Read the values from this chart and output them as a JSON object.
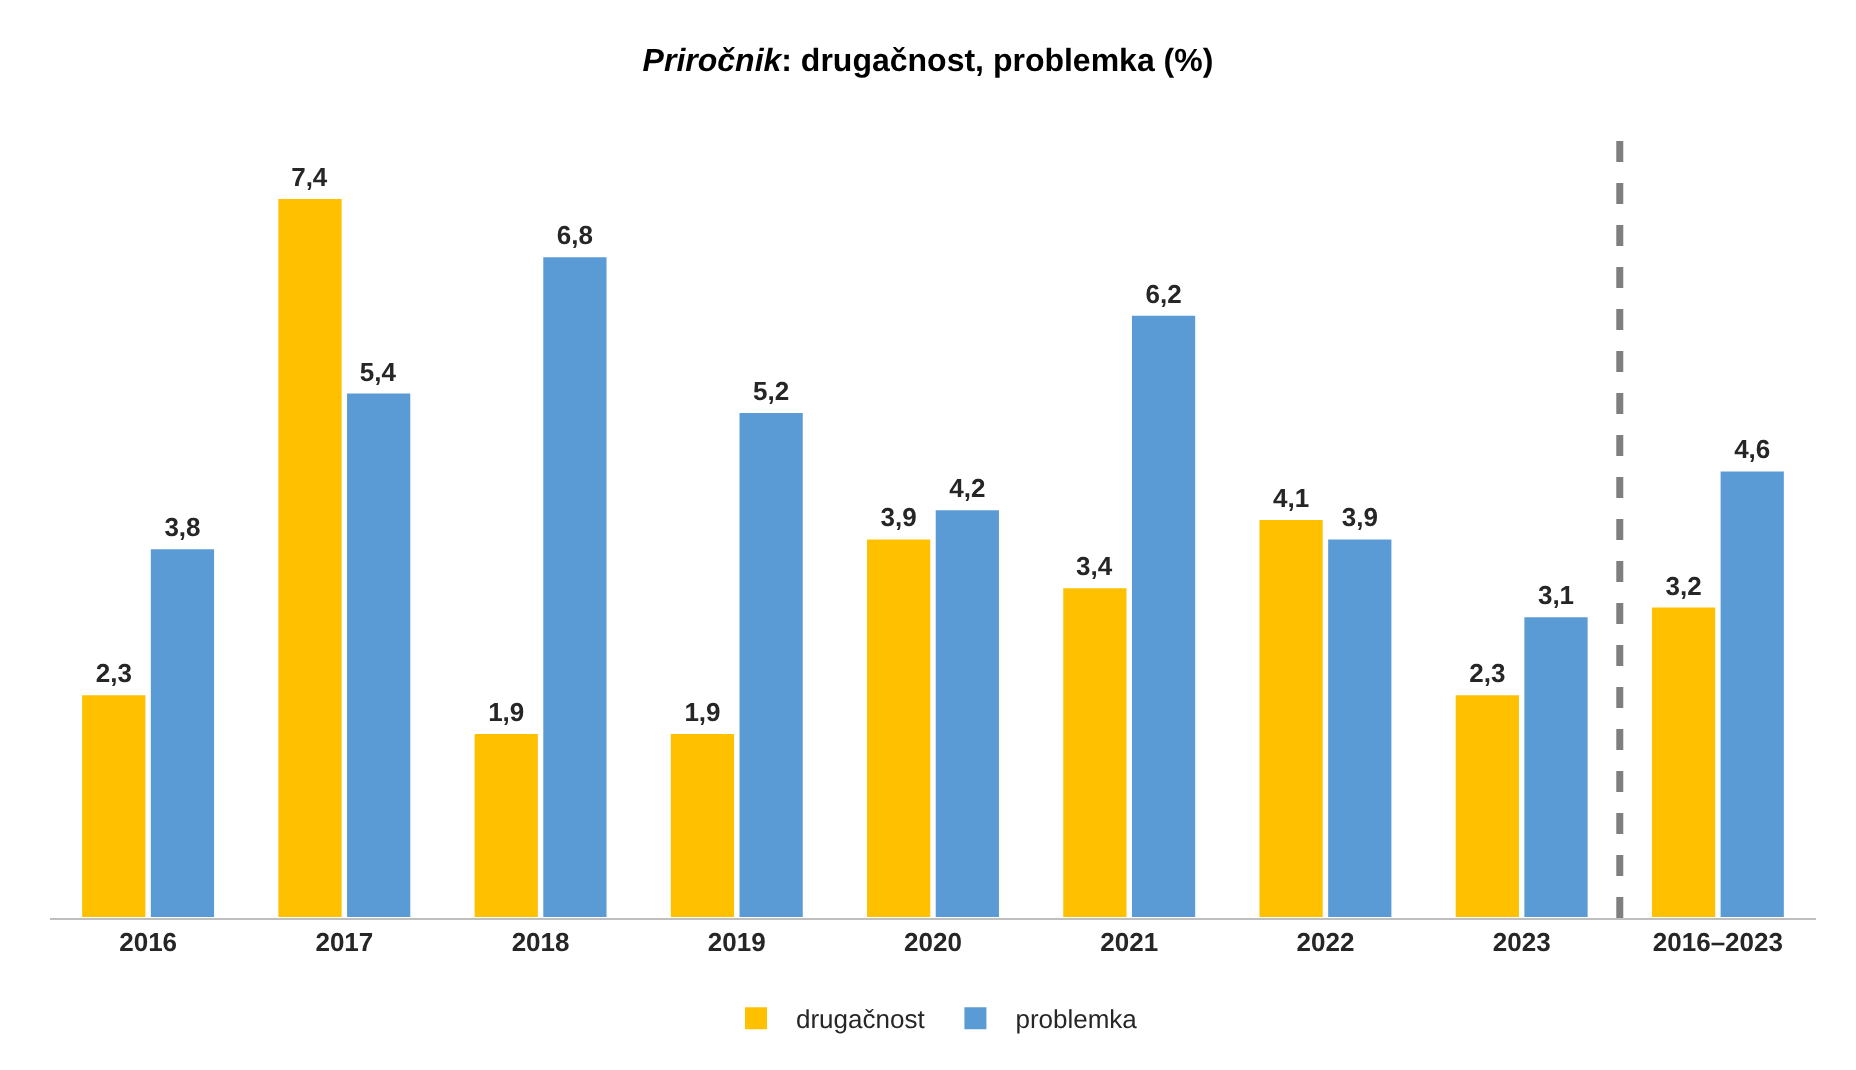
{
  "chart_data": {
    "type": "bar",
    "title": "Priročnik: drugačnost, problemka (%)",
    "categories": [
      "2016",
      "2017",
      "2018",
      "2019",
      "2020",
      "2021",
      "2022",
      "2023",
      "2016–2023"
    ],
    "series": [
      {
        "name": "drugačnost",
        "color": "#ffc000",
        "values": [
          2.3,
          7.4,
          1.9,
          1.9,
          3.9,
          3.4,
          4.1,
          2.3,
          3.2
        ],
        "value_labels": [
          "2,3",
          "7,4",
          "1,9",
          "1,9",
          "3,9",
          "3,4",
          "4,1",
          "2,3",
          "3,2"
        ]
      },
      {
        "name": "problemka",
        "color": "#5b9bd5",
        "values": [
          3.8,
          5.4,
          6.8,
          5.2,
          4.2,
          6.2,
          3.9,
          3.1,
          4.6
        ],
        "value_labels": [
          "3,8",
          "5,4",
          "6,8",
          "5,2",
          "4,2",
          "6,2",
          "3,9",
          "3,1",
          "4,6"
        ]
      }
    ],
    "legend": "bottom",
    "tick_labels": "x"
  }
}
